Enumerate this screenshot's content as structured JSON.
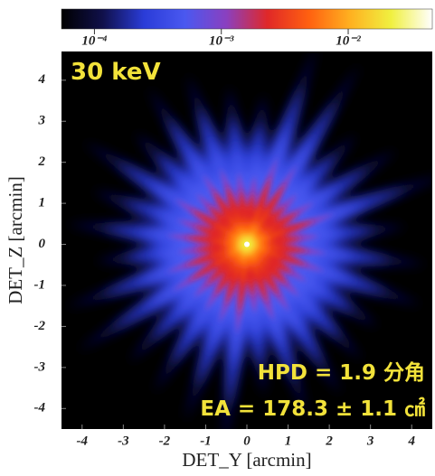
{
  "chart_data": {
    "type": "image",
    "xlabel": "DET_Y [arcmin]",
    "ylabel": "DET_Z [arcmin]",
    "xlim": [
      -4.5,
      4.5
    ],
    "ylim": [
      -4.5,
      4.7
    ],
    "xticks": [
      -4,
      -3,
      -2,
      -1,
      0,
      1,
      2,
      3,
      4
    ],
    "yticks": [
      -4,
      -3,
      -2,
      -1,
      0,
      1,
      2,
      3,
      4
    ],
    "colorbar": {
      "scale": "log",
      "lim": [
        5.5e-05,
        0.046
      ],
      "ticks": [
        {
          "value": 0.0001,
          "label": "10⁻⁴"
        },
        {
          "value": 0.001,
          "label": "10⁻³"
        },
        {
          "value": 0.01,
          "label": "10⁻²"
        }
      ],
      "colormap": [
        "#000000",
        "#10104a",
        "#2a3cd8",
        "#4a58f0",
        "#8a40c0",
        "#e02828",
        "#ff6010",
        "#ffb020",
        "#f0f040",
        "#ffffff"
      ]
    },
    "annotations": [
      "30 keV",
      "HPD = 1.9 分角",
      "EA = 178.3 ± 1.1 ㎠"
    ],
    "annotation_color": "#f2e23a"
  }
}
